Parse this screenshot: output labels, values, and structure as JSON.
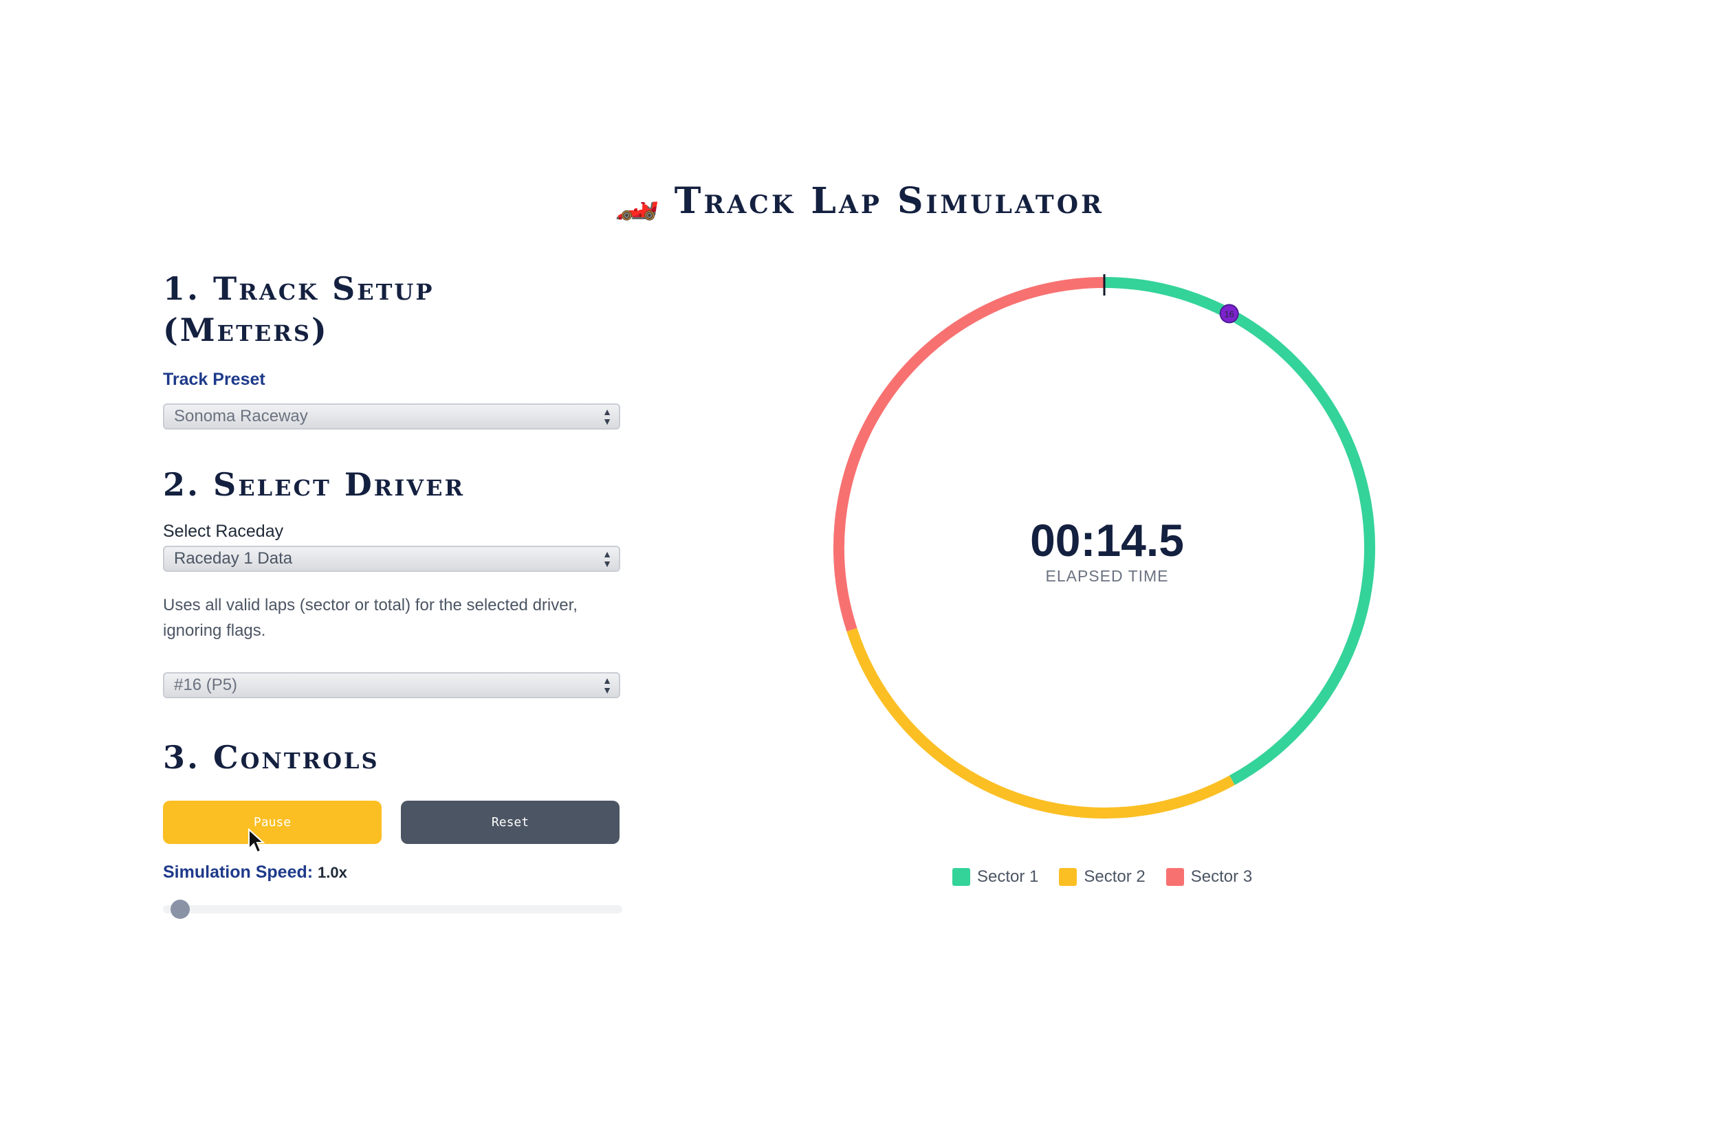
{
  "app": {
    "title": "Track Lap Simulator",
    "title_icon": "race-car-icon"
  },
  "track_setup": {
    "heading_line1": "1. Track Setup",
    "heading_line2": "(Meters)",
    "preset_label": "Track Preset",
    "preset_value": "Sonoma Raceway"
  },
  "driver": {
    "heading": "2. Select Driver",
    "raceday_label": "Select Raceday",
    "raceday_value": "Raceday 1 Data",
    "help_text_line1": "Uses all valid laps (sector or total) for the selected driver,",
    "help_text_line2": "ignoring flags.",
    "driver_value": "#16 (P5)"
  },
  "controls": {
    "heading": "3. Controls",
    "pause_label": "Pause",
    "reset_label": "Reset",
    "speed_label": "Simulation Speed:",
    "speed_value": "1.0x",
    "speed_slider_fraction": 0.0
  },
  "timer": {
    "value": "00:14.5",
    "label": "ELAPSED TIME"
  },
  "track_circle": {
    "sector_fractions": [
      0.42,
      0.28,
      0.3
    ],
    "car_position_fraction": 0.078,
    "car_number": "16",
    "car_color": "#7e22ce"
  },
  "legend": {
    "items": [
      {
        "label": "Sector 1",
        "color": "#34d399"
      },
      {
        "label": "Sector 2",
        "color": "#fbbf24"
      },
      {
        "label": "Sector 3",
        "color": "#f87171"
      }
    ]
  },
  "colors": {
    "accent_yellow": "#fbbf24",
    "heading_navy": "#14203f",
    "label_blue": "#1e3a8a",
    "reset_gray": "#4b5563"
  }
}
